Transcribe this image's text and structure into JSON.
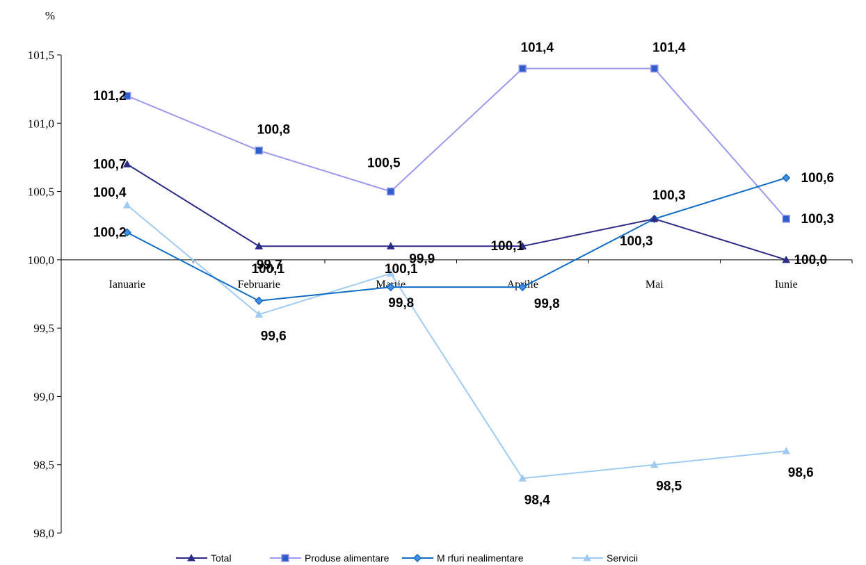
{
  "chart_data": {
    "type": "line",
    "ylabel": "%",
    "ylim": [
      98.0,
      101.5
    ],
    "yticks": [
      "98,0",
      "98,5",
      "99,0",
      "99,5",
      "100,0",
      "100,5",
      "101,0",
      "101,5"
    ],
    "ytick_values": [
      98.0,
      98.5,
      99.0,
      99.5,
      100.0,
      100.5,
      101.0,
      101.5
    ],
    "category_axis_crosses_at": 100.0,
    "categories": [
      "Ianuarie",
      "Februarie",
      "Martie",
      "Aprilie",
      "Mai",
      "Iunie"
    ],
    "grid": false,
    "legend_position": "bottom",
    "series": [
      {
        "name": "Total",
        "color": "#2B2A87",
        "marker": "triangle",
        "marker_fill": "#2B2A87",
        "values": [
          100.7,
          100.1,
          100.1,
          100.1,
          100.3,
          100.0
        ],
        "labels": [
          "100,7",
          "100,1",
          "100,1",
          "100,1",
          "100,3",
          "100,0"
        ]
      },
      {
        "name": "Produse alimentare",
        "color": "#9999F0",
        "marker": "square",
        "marker_fill": "#2E5FC9",
        "values": [
          101.2,
          100.8,
          100.5,
          101.4,
          101.4,
          100.3
        ],
        "labels": [
          "101,2",
          "100,8",
          "100,5",
          "101,4",
          "101,4",
          "100,3"
        ]
      },
      {
        "name": "M  rfuri nealimentare",
        "color": "#0E6CC6",
        "marker": "diamond",
        "marker_fill": "#4A90E2",
        "values": [
          100.2,
          99.7,
          99.8,
          99.8,
          100.3,
          100.6
        ],
        "labels": [
          "100,2",
          "99,7",
          "99,8",
          "99,8",
          "100,3",
          "100,6"
        ]
      },
      {
        "name": "Servicii",
        "color": "#9FCBF2",
        "marker": "triangle",
        "marker_fill": "#9FCBF2",
        "values": [
          100.4,
          99.6,
          99.9,
          98.4,
          98.5,
          98.6
        ],
        "labels": [
          "100,4",
          "99,6",
          "99,9",
          "98,4",
          "98,5",
          "98,6"
        ]
      }
    ]
  }
}
